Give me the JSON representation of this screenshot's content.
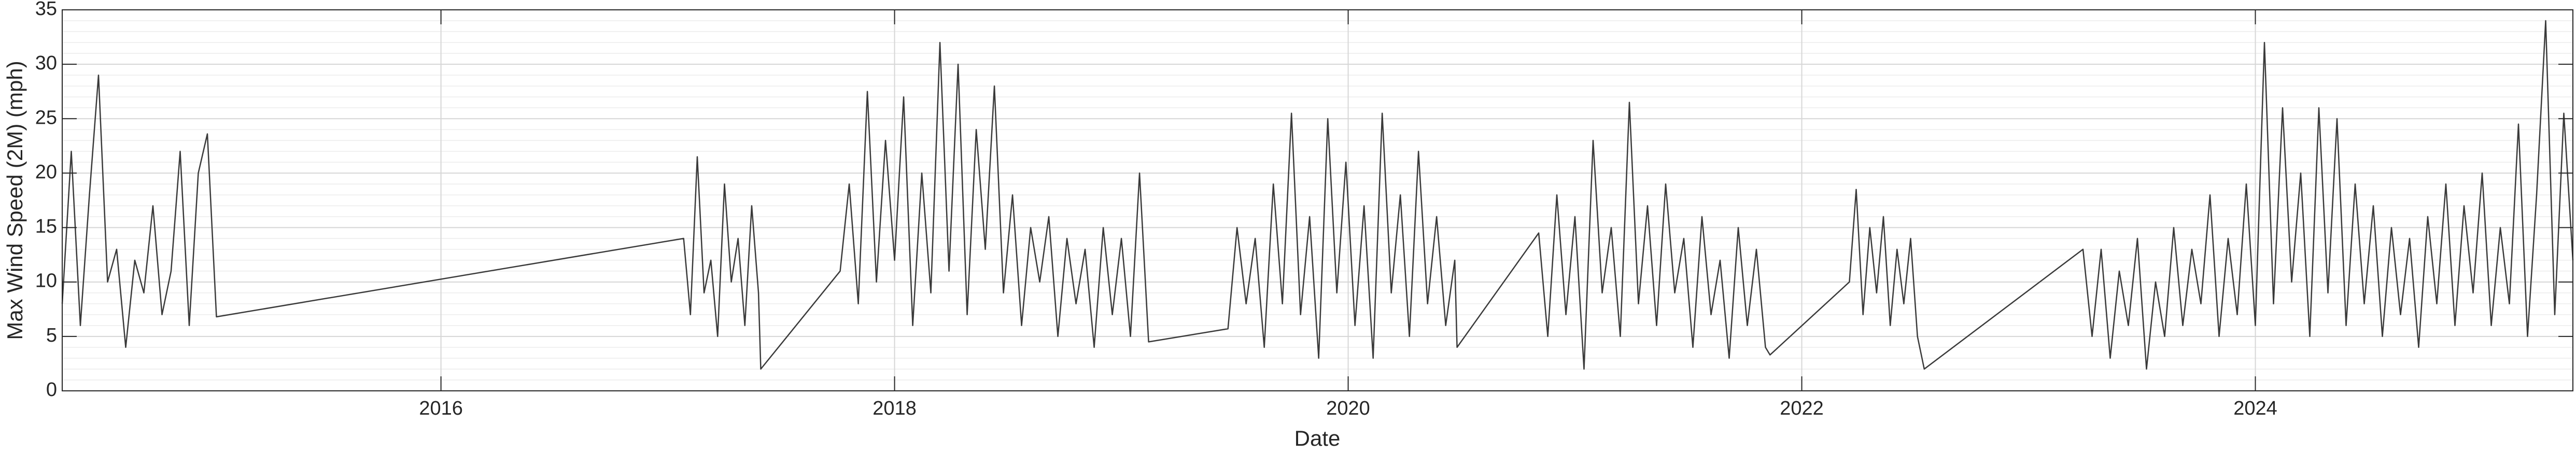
{
  "chart_data": {
    "type": "line",
    "x_label": "Date",
    "y_label": "Max Wind Speed (2M) (mph)",
    "color": "#3a3a3a",
    "xlim": [
      2014.33,
      2025.4
    ],
    "xticks": [
      2016,
      2018,
      2020,
      2022,
      2024
    ],
    "ylim": [
      0,
      35
    ],
    "yticks": [
      0,
      5,
      10,
      15,
      20,
      25,
      30,
      35
    ],
    "grid": true,
    "minor_grid": true,
    "x": [
      2014.33,
      2014.37,
      2014.41,
      2014.45,
      2014.49,
      2014.53,
      2014.57,
      2014.61,
      2014.65,
      2014.69,
      2014.73,
      2014.77,
      2014.81,
      2014.85,
      2014.89,
      2014.93,
      2014.97,
      2015.01,
      2017.07,
      2017.1,
      2017.13,
      2017.16,
      2017.19,
      2017.22,
      2017.25,
      2017.28,
      2017.31,
      2017.34,
      2017.37,
      2017.4,
      2017.41,
      2017.76,
      2017.8,
      2017.84,
      2017.88,
      2017.92,
      2017.96,
      2018.0,
      2018.04,
      2018.08,
      2018.12,
      2018.16,
      2018.2,
      2018.24,
      2018.28,
      2018.32,
      2018.36,
      2018.4,
      2018.44,
      2018.48,
      2018.52,
      2018.56,
      2018.6,
      2018.64,
      2018.68,
      2018.72,
      2018.76,
      2018.8,
      2018.84,
      2018.88,
      2018.92,
      2018.96,
      2019.0,
      2019.04,
      2019.08,
      2019.12,
      2019.47,
      2019.51,
      2019.55,
      2019.59,
      2019.63,
      2019.67,
      2019.71,
      2019.75,
      2019.79,
      2019.83,
      2019.87,
      2019.91,
      2019.95,
      2019.99,
      2020.03,
      2020.07,
      2020.11,
      2020.15,
      2020.19,
      2020.23,
      2020.27,
      2020.31,
      2020.35,
      2020.39,
      2020.43,
      2020.47,
      2020.48,
      2020.84,
      2020.88,
      2020.92,
      2020.96,
      2021.0,
      2021.04,
      2021.08,
      2021.12,
      2021.16,
      2021.2,
      2021.24,
      2021.28,
      2021.32,
      2021.36,
      2021.4,
      2021.44,
      2021.48,
      2021.52,
      2021.56,
      2021.6,
      2021.64,
      2021.68,
      2021.72,
      2021.76,
      2021.8,
      2021.84,
      2021.86,
      2022.21,
      2022.24,
      2022.27,
      2022.3,
      2022.33,
      2022.36,
      2022.39,
      2022.42,
      2022.45,
      2022.48,
      2022.51,
      2022.54,
      2023.24,
      2023.28,
      2023.32,
      2023.36,
      2023.4,
      2023.44,
      2023.48,
      2023.52,
      2023.56,
      2023.6,
      2023.64,
      2023.68,
      2023.72,
      2023.76,
      2023.8,
      2023.84,
      2023.88,
      2023.92,
      2023.96,
      2024.0,
      2024.04,
      2024.08,
      2024.12,
      2024.16,
      2024.2,
      2024.24,
      2024.28,
      2024.32,
      2024.36,
      2024.4,
      2024.44,
      2024.48,
      2024.52,
      2024.56,
      2024.6,
      2024.64,
      2024.68,
      2024.72,
      2024.76,
      2024.8,
      2024.84,
      2024.88,
      2024.92,
      2024.96,
      2025.0,
      2025.04,
      2025.08,
      2025.12,
      2025.16,
      2025.2,
      2025.24,
      2025.28,
      2025.32,
      2025.36,
      2025.4
    ],
    "values": [
      8,
      22,
      6,
      18,
      29,
      10,
      13,
      4,
      12,
      9,
      17,
      7,
      11,
      22,
      6,
      20,
      23.6,
      6.8,
      14,
      7,
      21.5,
      9,
      12,
      5,
      19,
      10,
      14,
      6,
      17,
      9,
      2,
      11,
      19,
      8,
      27.5,
      10,
      23,
      12,
      27,
      6,
      20,
      9,
      32,
      11,
      30,
      7,
      24,
      13,
      28,
      9,
      18,
      6,
      15,
      10,
      16,
      5,
      14,
      8,
      13,
      4,
      15,
      7,
      14,
      5,
      20,
      4.5,
      5.7,
      15,
      8,
      14,
      4,
      19,
      8,
      25.5,
      7,
      16,
      3,
      25,
      9,
      21,
      6,
      17,
      3,
      25.5,
      9,
      18,
      5,
      22,
      8,
      16,
      6,
      12,
      4,
      14.5,
      5,
      18,
      7,
      16,
      2,
      23,
      9,
      15,
      5,
      26.5,
      8,
      17,
      6,
      19,
      9,
      14,
      4,
      16,
      7,
      12,
      3,
      15,
      6,
      13,
      4,
      3.3,
      10,
      18.5,
      7,
      15,
      9,
      16,
      6,
      13,
      8,
      14,
      5,
      2,
      13,
      5,
      13,
      3,
      11,
      6,
      14,
      2,
      10,
      5,
      15,
      6,
      13,
      8,
      18,
      5,
      14,
      7,
      19,
      6,
      32,
      8,
      26,
      10,
      20,
      5,
      26,
      9,
      25,
      6,
      19,
      8,
      17,
      5,
      15,
      7,
      14,
      4,
      16,
      8,
      19,
      6,
      17,
      9,
      20,
      6,
      15,
      8,
      24.5,
      5,
      18,
      34,
      7,
      25.5,
      12
    ]
  }
}
